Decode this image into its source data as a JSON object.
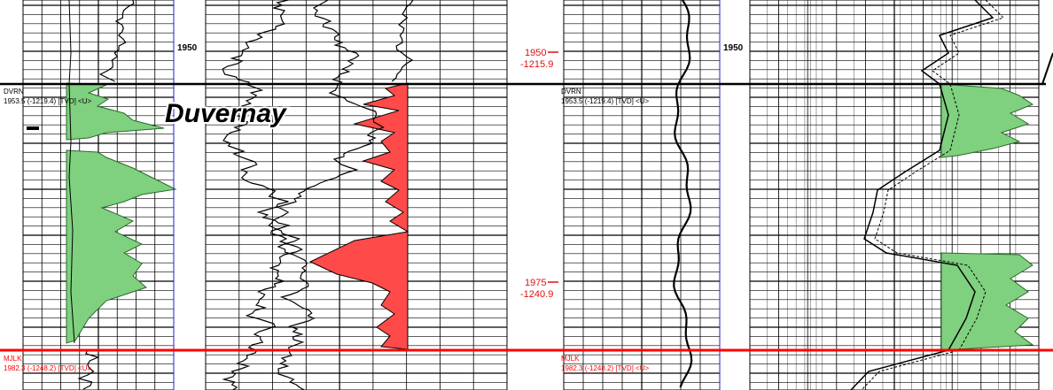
{
  "title": "Duvernay",
  "depth_labels": [
    {
      "md": "1950",
      "subsea": "-1215.9"
    },
    {
      "md": "1975",
      "subsea": "-1240.9"
    }
  ],
  "track_depth_labels": [
    "1950",
    "1950"
  ],
  "tops": [
    {
      "code": "DVRN",
      "detail": "1953.5 (-1219.4) [TVD] <U>",
      "color": "#000000"
    },
    {
      "code": "MJLK",
      "detail": "1982.3 (-1248.2) [TVD] <U>",
      "color": "#ff0000"
    }
  ],
  "colors": {
    "green_fill": "#7fd07f",
    "red_fill": "#ff4a4a",
    "top_line_black": "#000000",
    "top_line_red": "#ff0000",
    "blue_line": "#2222cc",
    "depth_text": "#e01010"
  }
}
